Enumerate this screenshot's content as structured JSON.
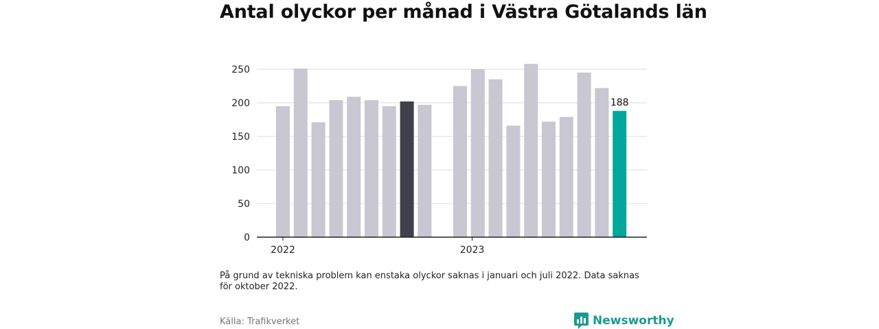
{
  "title": "Antal olyckor per månad i Västra Götalands län",
  "chart_data": {
    "type": "bar",
    "title": "Antal olyckor per månad i Västra Götalands län",
    "xlabel": "",
    "ylabel": "",
    "ylim": [
      0,
      260
    ],
    "yticks": [
      0,
      50,
      100,
      150,
      200,
      250
    ],
    "grid": true,
    "year_labels": [
      {
        "label": "2022",
        "at_bar": 0
      },
      {
        "label": "2023",
        "at_bar": 12
      }
    ],
    "bars": [
      {
        "month": "2022-01",
        "value": 195,
        "color": "#c8c7d2"
      },
      {
        "month": "2022-02",
        "value": 251,
        "color": "#c8c7d2"
      },
      {
        "month": "2022-03",
        "value": 171,
        "color": "#c8c7d2"
      },
      {
        "month": "2022-04",
        "value": 204,
        "color": "#c8c7d2"
      },
      {
        "month": "2022-05",
        "value": 209,
        "color": "#c8c7d2"
      },
      {
        "month": "2022-06",
        "value": 204,
        "color": "#c8c7d2"
      },
      {
        "month": "2022-07",
        "value": 195,
        "color": "#c8c7d2"
      },
      {
        "month": "2022-08",
        "value": 202,
        "color": "#403f4c"
      },
      {
        "month": "2022-09",
        "value": 197,
        "color": "#c8c7d2"
      },
      {
        "month": "2022-10",
        "value": null,
        "color": "#c8c7d2"
      },
      {
        "month": "2022-11",
        "value": 225,
        "color": "#c8c7d2"
      },
      {
        "month": "2022-12",
        "value": 250,
        "color": "#c8c7d2"
      },
      {
        "month": "2023-01",
        "value": 235,
        "color": "#c8c7d2"
      },
      {
        "month": "2023-02",
        "value": 166,
        "color": "#c8c7d2"
      },
      {
        "month": "2023-03",
        "value": 258,
        "color": "#c8c7d2"
      },
      {
        "month": "2023-04",
        "value": 172,
        "color": "#c8c7d2"
      },
      {
        "month": "2023-05",
        "value": 179,
        "color": "#c8c7d2"
      },
      {
        "month": "2023-06",
        "value": 245,
        "color": "#c8c7d2"
      },
      {
        "month": "2023-07",
        "value": 222,
        "color": "#c8c7d2"
      },
      {
        "month": "2023-08",
        "value": 188,
        "color": "#00a79d",
        "label": "188"
      }
    ]
  },
  "note": "På grund av tekniska problem kan enstaka olyckor saknas i januari och juli 2022. Data saknas för oktober 2022.",
  "source": "Källa: Trafikverket",
  "brand": {
    "name": "Newsworthy",
    "icon": "newsworthy-logo-icon",
    "color": "#1a9a92"
  }
}
